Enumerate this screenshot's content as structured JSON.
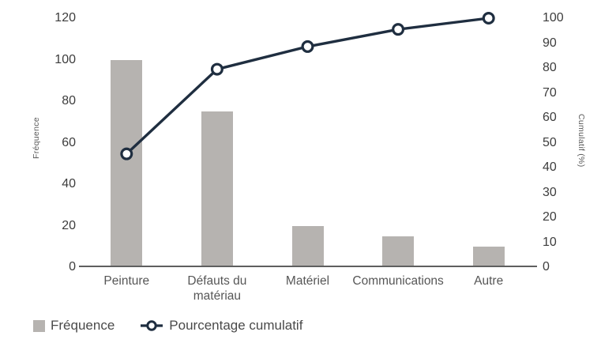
{
  "chart_data": {
    "type": "pareto",
    "title": "",
    "categories": [
      "Peinture",
      "Défauts du matériau",
      "Matériel",
      "Communications",
      "Autre"
    ],
    "series": [
      {
        "name": "Fréquence",
        "type": "bar",
        "axis": "left",
        "values": [
          100,
          75,
          20,
          15,
          10
        ]
      },
      {
        "name": "Pourcentage cumulatif",
        "type": "line",
        "axis": "right",
        "values": [
          45.5,
          79.5,
          88.6,
          95.5,
          100
        ]
      }
    ],
    "left_axis": {
      "title": "Fréquence",
      "min": 0,
      "max": 120,
      "ticks": [
        0,
        20,
        40,
        60,
        80,
        100,
        120
      ]
    },
    "right_axis": {
      "title": "Cumulatif (%)",
      "min": 0,
      "max": 100,
      "ticks": [
        0,
        10,
        20,
        30,
        40,
        50,
        60,
        70,
        80,
        90,
        100
      ]
    },
    "legend": {
      "position": "bottom-left",
      "items": [
        {
          "label": "Fréquence",
          "marker": "bar-swatch"
        },
        {
          "label": "Pourcentage cumulatif",
          "marker": "line-with-ring-marker"
        }
      ]
    },
    "grid": false,
    "colors": {
      "bar": "#b6b3b0",
      "line": "#1f2e40",
      "marker_fill": "#ffffff",
      "axis_line": "#5f5f5f",
      "tick_label": "#3d3d3d",
      "category_label": "#565656",
      "axis_title": "#585858",
      "legend_label": "#4a4a4a",
      "background": "#ffffff"
    }
  }
}
